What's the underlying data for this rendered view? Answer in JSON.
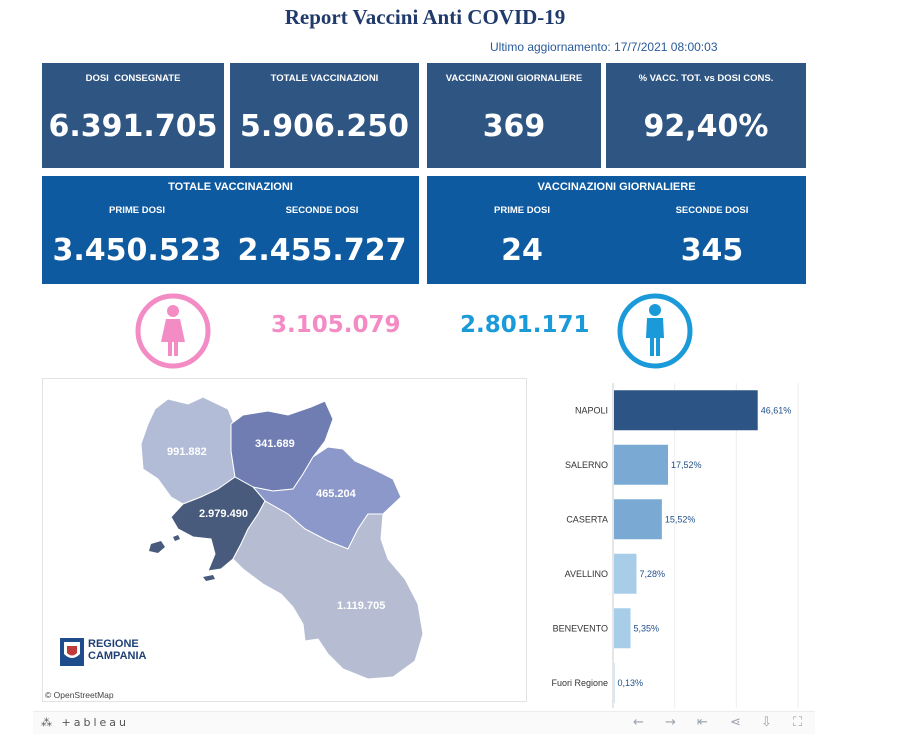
{
  "header": {
    "title": "Report Vaccini Anti COVID-19",
    "updated": "Ultimo aggiornamento: 17/7/2021 08:00:03"
  },
  "kpis": [
    {
      "label": "DOSI  CONSEGNATE",
      "value": "6.391.705"
    },
    {
      "label": "TOTALE VACCINAZIONI",
      "value": "5.906.250"
    },
    {
      "label": "VACCINAZIONI GIORNALIERE",
      "value": "369"
    },
    {
      "label": "% VACC. TOT. vs DOSI CONS.",
      "value": "92,40%"
    }
  ],
  "panels": [
    {
      "title": "TOTALE VACCINAZIONI",
      "first_label": "PRIME DOSI",
      "first_value": "3.450.523",
      "second_label": "SECONDE DOSI",
      "second_value": "2.455.727"
    },
    {
      "title": "VACCINAZIONI GIORNALIERE",
      "first_label": "PRIME DOSI",
      "first_value": "24",
      "second_label": "SECONDE DOSI",
      "second_value": "345"
    }
  ],
  "gender": {
    "female_value": "3.105.079",
    "male_value": "2.801.171",
    "female_color": "#f38bc4",
    "male_color": "#1a9ad8",
    "female_icon": "female-person-icon",
    "male_icon": "male-person-icon"
  },
  "map": {
    "labels": {
      "caserta": "991.882",
      "benevento": "341.689",
      "avellino": "465.204",
      "napoli": "2.979.490",
      "salerno": "1.119.705"
    },
    "logo_line1": "REGIONE",
    "logo_line2": "CAMPANIA",
    "attribution": "© OpenStreetMap"
  },
  "chart_data": {
    "type": "bar",
    "orientation": "horizontal",
    "categories": [
      "NAPOLI",
      "SALERNO",
      "CASERTA",
      "AVELLINO",
      "BENEVENTO",
      "Fuori Regione"
    ],
    "values": [
      46.61,
      17.52,
      15.52,
      7.28,
      5.35,
      0.13
    ],
    "value_labels": [
      "46,61%",
      "17,52%",
      "15,52%",
      "7,28%",
      "5,35%",
      "0,13%"
    ],
    "colors": [
      "#2c5585",
      "#7aaad3",
      "#7aaad3",
      "#a8cde8",
      "#a8cde8",
      "#a8cde8"
    ],
    "xlim": [
      0,
      60
    ],
    "grid": true
  },
  "footer": {
    "brand": "+ableau",
    "icons": [
      "undo-icon",
      "redo-icon",
      "revert-icon",
      "share-icon",
      "download-icon",
      "fullscreen-icon"
    ]
  }
}
